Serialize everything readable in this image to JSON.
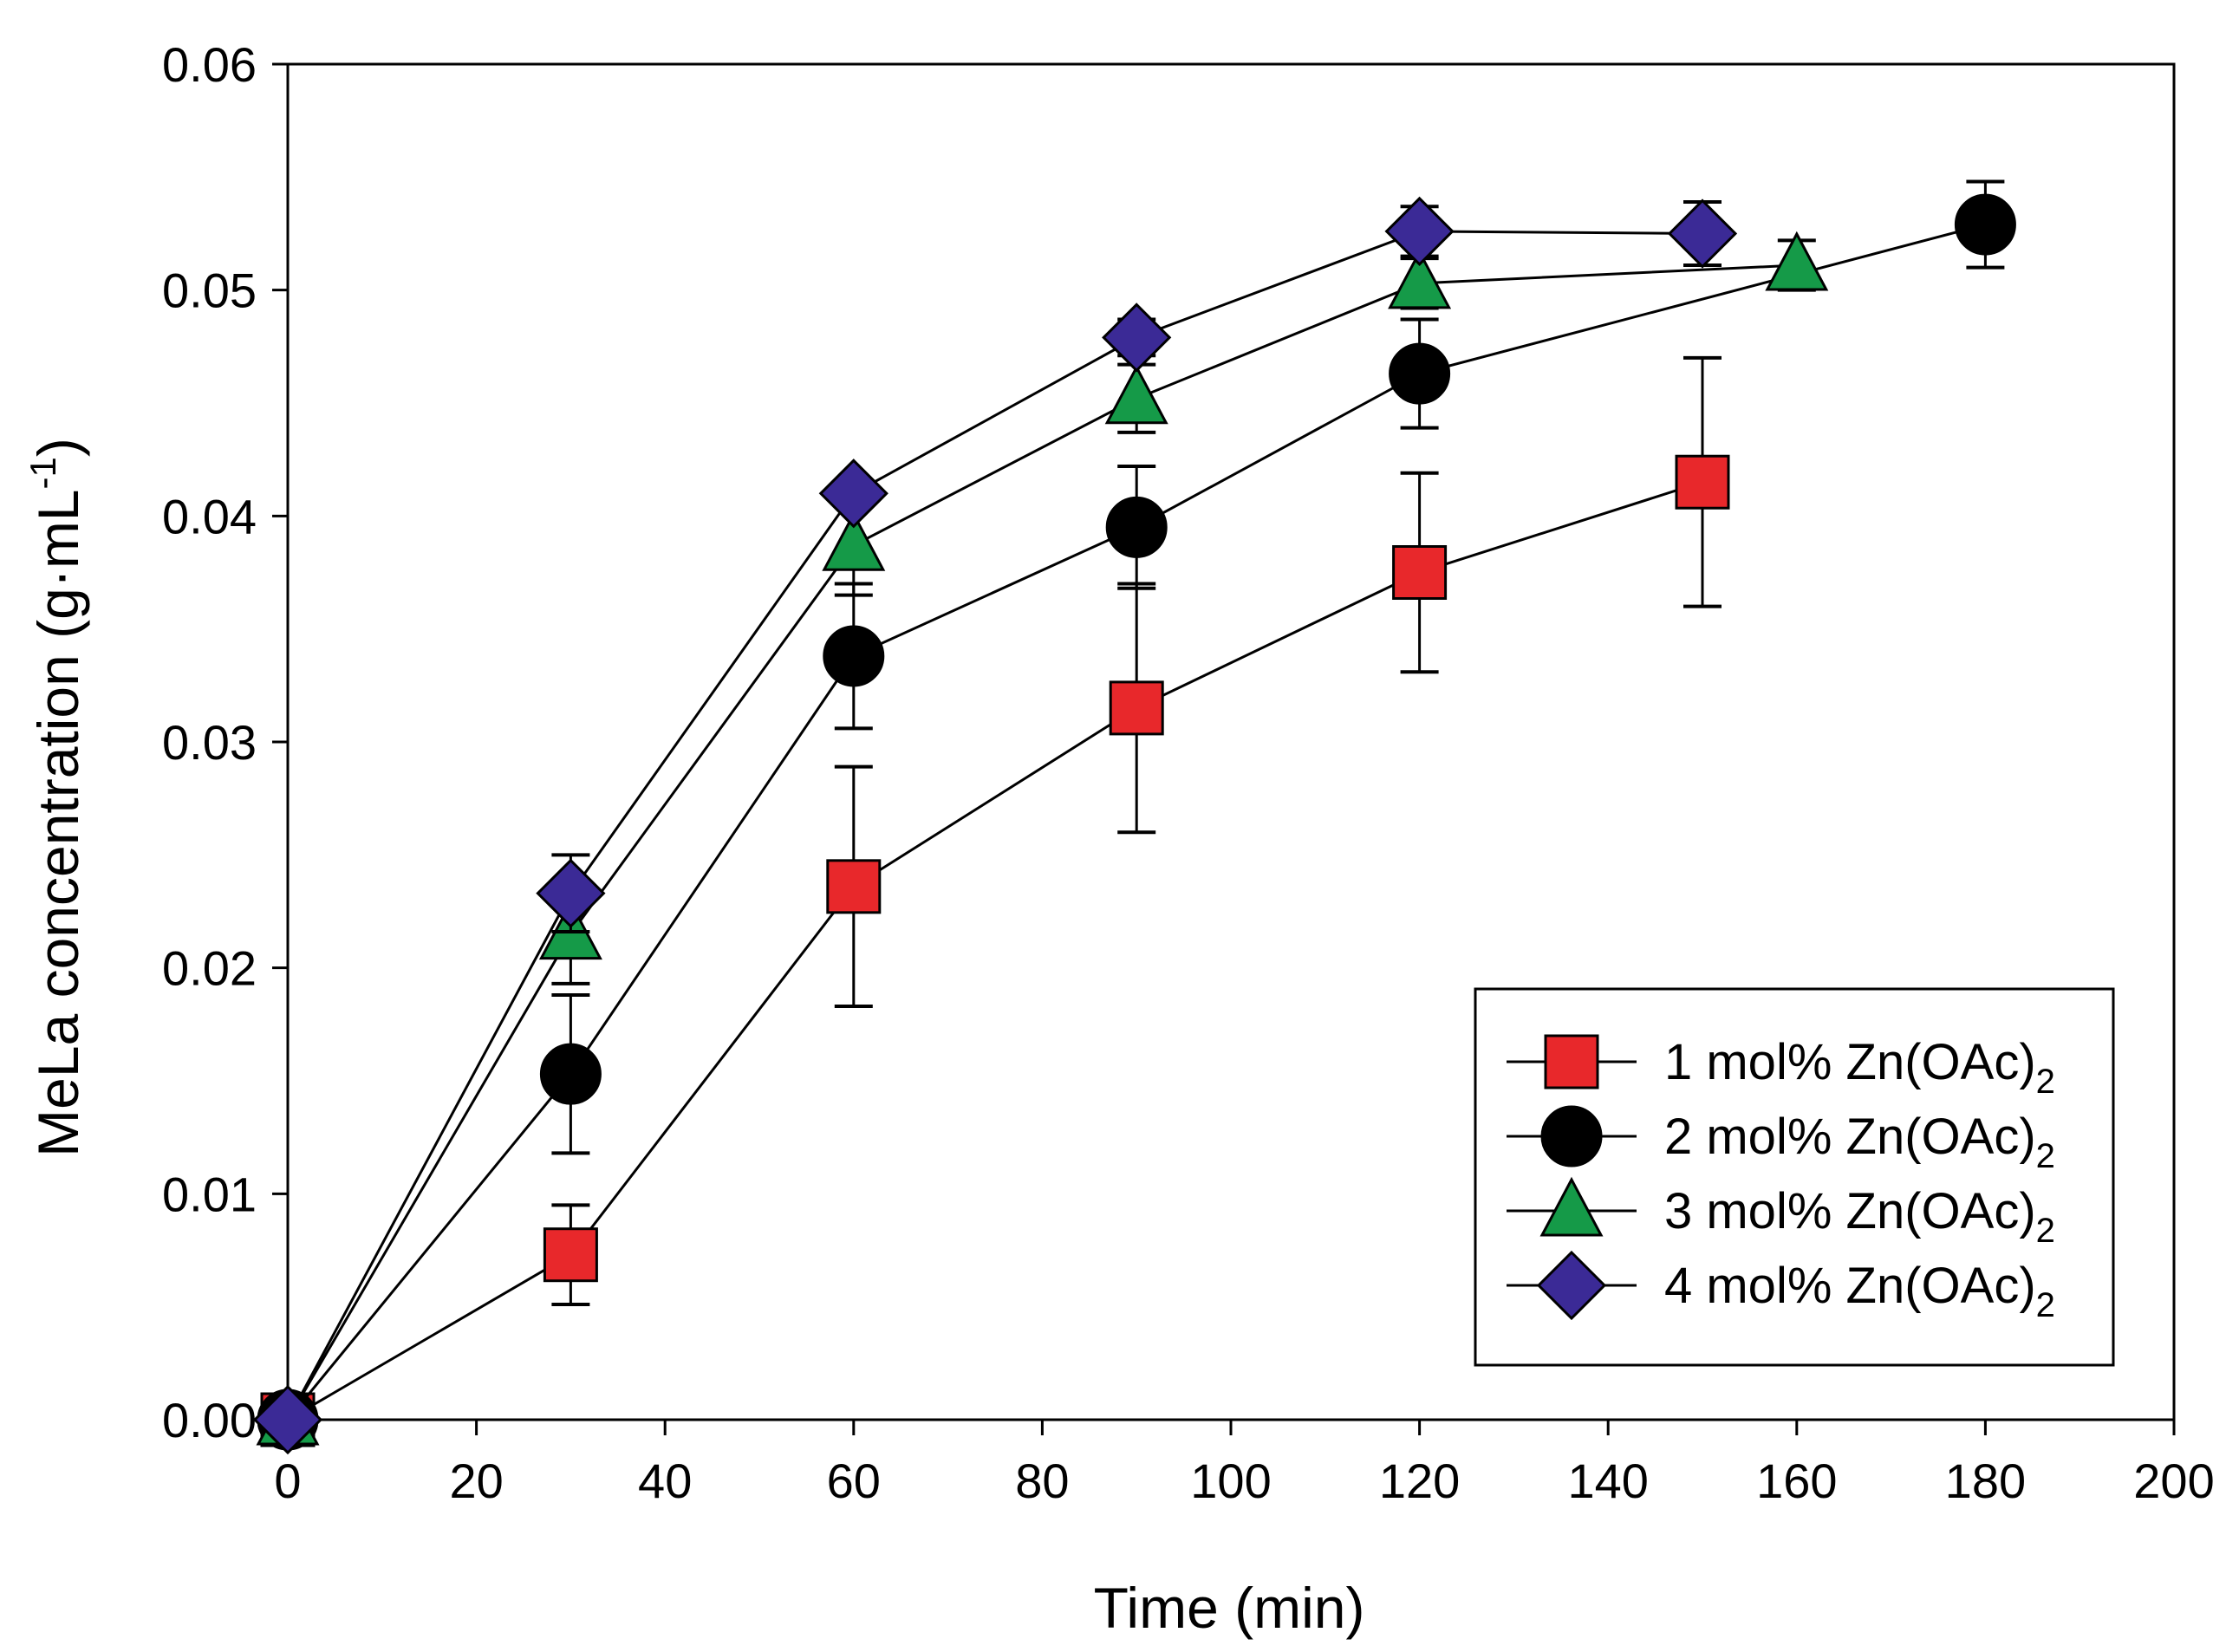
{
  "chart_data": {
    "type": "line",
    "title": "",
    "xlabel": "Time (min)",
    "ylabel": "MeLa concentration (g·mL",
    "ylabel_sup": "-1",
    "ylabel_close": ")",
    "xlim": [
      0,
      200
    ],
    "ylim": [
      0,
      0.06
    ],
    "x_ticks": [
      0,
      20,
      40,
      60,
      80,
      100,
      120,
      140,
      160,
      180,
      200
    ],
    "x_tick_labels": [
      "0",
      "20",
      "40",
      "60",
      "80",
      "100",
      "120",
      "140",
      "160",
      "180",
      "200"
    ],
    "y_ticks": [
      0,
      0.01,
      0.02,
      0.03,
      0.04,
      0.05,
      0.06
    ],
    "y_tick_labels": [
      "0.00",
      "0.01",
      "0.02",
      "0.03",
      "0.04",
      "0.05",
      "0.06"
    ],
    "grid": false,
    "legend_position": "bottom-right",
    "series": [
      {
        "name": "1 mol% Zn(OAc)",
        "subscript": "2",
        "marker": "square",
        "color": "#e8282b",
        "x": [
          0,
          30,
          60,
          90,
          120,
          150
        ],
        "y": [
          0.0,
          0.0073,
          0.0236,
          0.0315,
          0.0375,
          0.0415
        ],
        "err": [
          0.0,
          0.0022,
          0.0053,
          0.0055,
          0.0044,
          0.0055
        ]
      },
      {
        "name": "2 mol% Zn(OAc)",
        "subscript": "2",
        "marker": "circle",
        "color": "#000000",
        "x": [
          0,
          30,
          60,
          90,
          120,
          180
        ],
        "y": [
          0.0,
          0.0153,
          0.0338,
          0.0395,
          0.0463,
          0.0529
        ],
        "err": [
          0.0,
          0.0035,
          0.0032,
          0.0027,
          0.0024,
          0.0019
        ]
      },
      {
        "name": "3 mol% Zn(OAc)",
        "subscript": "2",
        "marker": "triangle",
        "color": "#159a48",
        "x": [
          0,
          30,
          60,
          90,
          120,
          160
        ],
        "y": [
          0.0,
          0.0215,
          0.0387,
          0.0452,
          0.0503,
          0.0511
        ],
        "err": [
          0.0,
          0.0022,
          0.0022,
          0.0015,
          0.0011,
          0.0011
        ]
      },
      {
        "name": "4 mol% Zn(OAc)",
        "subscript": "2",
        "marker": "diamond",
        "color": "#3b2a96",
        "x": [
          0,
          30,
          60,
          90,
          120,
          150
        ],
        "y": [
          0.0,
          0.0233,
          0.041,
          0.0479,
          0.0526,
          0.0525
        ],
        "err": [
          0.0,
          0.0017,
          0.0,
          0.0008,
          0.0011,
          0.0014
        ]
      }
    ]
  }
}
